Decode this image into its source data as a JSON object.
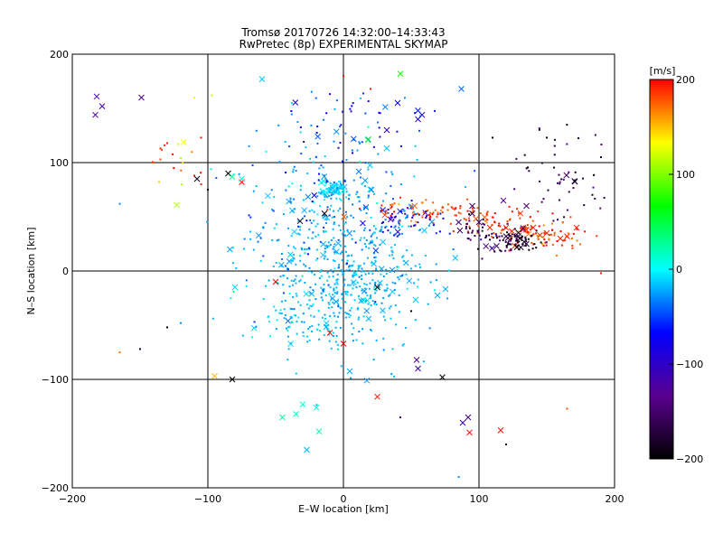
{
  "chart_data": {
    "type": "scatter",
    "title": "Tromsø 20170726 14:32:00–14:33:43",
    "subtitle": "RwPretec (8p) EXPERIMENTAL SKYMAP",
    "xlabel": "E–W location [km]",
    "ylabel": "N–S location [km]",
    "xlim": [
      -200,
      200
    ],
    "ylim": [
      -200,
      200
    ],
    "xticks": [
      -200,
      -100,
      0,
      100,
      200
    ],
    "yticks": [
      -200,
      -100,
      0,
      100,
      200
    ],
    "grid": true,
    "colorbar": {
      "label": "[m/s]",
      "range": [
        -200,
        200
      ],
      "ticks": [
        200,
        100,
        0,
        -100,
        -200
      ],
      "colormap": [
        "#000000",
        "#5a0090",
        "#0000ff",
        "#00ffff",
        "#00ff00",
        "#ffff00",
        "#ff0000"
      ]
    },
    "marker_types": [
      "cross",
      "dot"
    ],
    "clusters": [
      {
        "center": [
          0,
          0
        ],
        "spread": [
          32,
          38
        ],
        "count": 520,
        "velocity": [
          -20,
          5
        ]
      },
      {
        "center": [
          -7,
          75
        ],
        "spread": [
          6,
          5
        ],
        "count": 90,
        "velocity": [
          -10,
          10
        ]
      },
      {
        "center": [
          -18,
          60
        ],
        "spread": [
          30,
          40
        ],
        "count": 180,
        "velocity": [
          -30,
          20
        ]
      },
      {
        "center": [
          10,
          135
        ],
        "spread": [
          25,
          20
        ],
        "count": 45,
        "velocity": [
          -60,
          40
        ]
      },
      {
        "center": [
          45,
          48
        ],
        "spread": [
          14,
          8
        ],
        "count": 60,
        "velocity": [
          -80,
          30
        ]
      },
      {
        "center": [
          65,
          55
        ],
        "spread": [
          25,
          6
        ],
        "count": 70,
        "velocity": [
          185,
          15
        ]
      },
      {
        "center": [
          110,
          47
        ],
        "spread": [
          18,
          7
        ],
        "count": 40,
        "velocity": [
          190,
          10
        ]
      },
      {
        "center": [
          145,
          33
        ],
        "spread": [
          20,
          6
        ],
        "count": 80,
        "velocity": [
          185,
          15
        ]
      },
      {
        "center": [
          125,
          28
        ],
        "spread": [
          10,
          6
        ],
        "count": 70,
        "velocity": [
          -175,
          20
        ]
      },
      {
        "center": [
          100,
          38
        ],
        "spread": [
          10,
          5
        ],
        "count": 30,
        "velocity": [
          -160,
          20
        ]
      },
      {
        "center": [
          165,
          90
        ],
        "spread": [
          18,
          20
        ],
        "count": 50,
        "velocity": [
          -165,
          15
        ]
      },
      {
        "center": [
          -120,
          95
        ],
        "spread": [
          12,
          12
        ],
        "count": 12,
        "velocity": [
          160,
          40
        ]
      },
      {
        "center": [
          -35,
          -40
        ],
        "spread": [
          18,
          15
        ],
        "count": 50,
        "velocity": [
          -10,
          15
        ]
      },
      {
        "center": [
          30,
          -20
        ],
        "spread": [
          20,
          15
        ],
        "count": 30,
        "velocity": [
          -20,
          20
        ]
      }
    ],
    "points": [
      {
        "x": -183,
        "y": 144,
        "v": -120,
        "m": "cross"
      },
      {
        "x": -182,
        "y": 161,
        "v": -120,
        "m": "cross"
      },
      {
        "x": -178,
        "y": 152,
        "v": -120,
        "m": "cross"
      },
      {
        "x": -149,
        "y": 160,
        "v": -130,
        "m": "cross"
      },
      {
        "x": -135,
        "y": 113,
        "v": 190,
        "m": "dot"
      },
      {
        "x": -132,
        "y": 116,
        "v": 190,
        "m": "dot"
      },
      {
        "x": -130,
        "y": 118,
        "v": 190,
        "m": "dot"
      },
      {
        "x": -105,
        "y": 123,
        "v": 195,
        "m": "dot"
      },
      {
        "x": -97,
        "y": 162,
        "v": 120,
        "m": "dot"
      },
      {
        "x": -110,
        "y": 88,
        "v": 190,
        "m": "dot"
      },
      {
        "x": -108,
        "y": 85,
        "v": -190,
        "m": "cross"
      },
      {
        "x": -85,
        "y": 90,
        "v": -200,
        "m": "cross"
      },
      {
        "x": -82,
        "y": 87,
        "v": 30,
        "m": "cross"
      },
      {
        "x": -75,
        "y": 82,
        "v": 195,
        "m": "cross"
      },
      {
        "x": -123,
        "y": 61,
        "v": 110,
        "m": "cross"
      },
      {
        "x": -165,
        "y": 62,
        "v": -30,
        "m": "dot"
      },
      {
        "x": -135,
        "y": 103,
        "v": 180,
        "m": "dot"
      },
      {
        "x": -120,
        "y": 104,
        "v": 110,
        "m": "dot"
      },
      {
        "x": -60,
        "y": 177,
        "v": -15,
        "m": "cross"
      },
      {
        "x": -38,
        "y": 155,
        "v": -10,
        "m": "dot"
      },
      {
        "x": 42,
        "y": 182,
        "v": 70,
        "m": "cross"
      },
      {
        "x": 87,
        "y": 168,
        "v": -40,
        "m": "cross"
      },
      {
        "x": 40,
        "y": 155,
        "v": -70,
        "m": "cross"
      },
      {
        "x": 55,
        "y": 148,
        "v": -60,
        "m": "cross"
      },
      {
        "x": 58,
        "y": 144,
        "v": -90,
        "m": "cross"
      },
      {
        "x": 55,
        "y": 140,
        "v": -90,
        "m": "cross"
      },
      {
        "x": 32,
        "y": 130,
        "v": -110,
        "m": "cross"
      },
      {
        "x": 18,
        "y": 121,
        "v": 60,
        "m": "cross"
      },
      {
        "x": -32,
        "y": 46,
        "v": -195,
        "m": "cross"
      },
      {
        "x": -14,
        "y": 53,
        "v": -195,
        "m": "cross"
      },
      {
        "x": 150,
        "y": 123,
        "v": -190,
        "m": "dot"
      },
      {
        "x": 135,
        "y": 25,
        "v": -180,
        "m": "cross"
      },
      {
        "x": -50,
        "y": -10,
        "v": 200,
        "m": "cross"
      },
      {
        "x": -80,
        "y": -15,
        "v": -10,
        "m": "cross"
      },
      {
        "x": -83,
        "y": -25,
        "v": 0,
        "m": "dot"
      },
      {
        "x": 25,
        "y": -15,
        "v": -200,
        "m": "cross"
      },
      {
        "x": -150,
        "y": -72,
        "v": -180,
        "m": "dot"
      },
      {
        "x": -165,
        "y": -75,
        "v": 170,
        "m": "dot"
      },
      {
        "x": -130,
        "y": -52,
        "v": -200,
        "m": "dot"
      },
      {
        "x": -120,
        "y": -48,
        "v": -30,
        "m": "dot"
      },
      {
        "x": -95,
        "y": -97,
        "v": 150,
        "m": "cross"
      },
      {
        "x": -82,
        "y": -100,
        "v": -200,
        "m": "cross"
      },
      {
        "x": 54,
        "y": -82,
        "v": -130,
        "m": "cross"
      },
      {
        "x": 55,
        "y": -90,
        "v": -110,
        "m": "cross"
      },
      {
        "x": 73,
        "y": -98,
        "v": -200,
        "m": "cross"
      },
      {
        "x": 25,
        "y": -116,
        "v": 195,
        "m": "cross"
      },
      {
        "x": -30,
        "y": -123,
        "v": 10,
        "m": "cross"
      },
      {
        "x": -20,
        "y": -126,
        "v": 10,
        "m": "cross"
      },
      {
        "x": -45,
        "y": -135,
        "v": 20,
        "m": "cross"
      },
      {
        "x": -35,
        "y": -132,
        "v": 15,
        "m": "cross"
      },
      {
        "x": -18,
        "y": -148,
        "v": 20,
        "m": "cross"
      },
      {
        "x": -27,
        "y": -165,
        "v": -20,
        "m": "cross"
      },
      {
        "x": 92,
        "y": -135,
        "v": -150,
        "m": "cross"
      },
      {
        "x": 88,
        "y": -140,
        "v": -110,
        "m": "cross"
      },
      {
        "x": 93,
        "y": -149,
        "v": 200,
        "m": "cross"
      },
      {
        "x": 116,
        "y": -147,
        "v": 195,
        "m": "cross"
      },
      {
        "x": 120,
        "y": -160,
        "v": -200,
        "m": "dot"
      },
      {
        "x": 42,
        "y": -135,
        "v": -150,
        "m": "dot"
      },
      {
        "x": 85,
        "y": -190,
        "v": -30,
        "m": "dot"
      },
      {
        "x": 165,
        "y": -127,
        "v": 180,
        "m": "dot"
      },
      {
        "x": 190,
        "y": -2,
        "v": 190,
        "m": "dot"
      },
      {
        "x": 0,
        "y": -67,
        "v": 200,
        "m": "cross"
      },
      {
        "x": -10,
        "y": -57,
        "v": 190,
        "m": "cross"
      },
      {
        "x": 50,
        "y": -37,
        "v": -200,
        "m": "dot"
      },
      {
        "x": -140,
        "y": 100,
        "v": 180,
        "m": "dot"
      },
      {
        "x": -105,
        "y": 80,
        "v": 190,
        "m": "dot"
      },
      {
        "x": -100,
        "y": 75,
        "v": -190,
        "m": "dot"
      },
      {
        "x": -110,
        "y": 160,
        "v": 130,
        "m": "dot"
      },
      {
        "x": -75,
        "y": 85,
        "v": 10,
        "m": "cross"
      },
      {
        "x": 0,
        "y": 180,
        "v": 195,
        "m": "dot"
      },
      {
        "x": 20,
        "y": 168,
        "v": 195,
        "m": "dot"
      },
      {
        "x": 110,
        "y": 123,
        "v": -200,
        "m": "dot"
      },
      {
        "x": 190,
        "y": 105,
        "v": -180,
        "m": "dot"
      },
      {
        "x": 130,
        "y": 30,
        "v": -190,
        "m": "cross"
      },
      {
        "x": 128,
        "y": 22,
        "v": -200,
        "m": "cross"
      },
      {
        "x": 120,
        "y": 32,
        "v": -170,
        "m": "cross"
      },
      {
        "x": 100,
        "y": 45,
        "v": -150,
        "m": "cross"
      },
      {
        "x": 95,
        "y": 60,
        "v": -150,
        "m": "cross"
      },
      {
        "x": 85,
        "y": 45,
        "v": -150,
        "m": "cross"
      },
      {
        "x": 95,
        "y": 53,
        "v": -160,
        "m": "cross"
      },
      {
        "x": 113,
        "y": 23,
        "v": -160,
        "m": "cross"
      },
      {
        "x": 135,
        "y": 60,
        "v": -150,
        "m": "cross"
      },
      {
        "x": 118,
        "y": 65,
        "v": -130,
        "m": "cross"
      },
      {
        "x": 145,
        "y": 33,
        "v": 190,
        "m": "cross"
      },
      {
        "x": 150,
        "y": 35,
        "v": 190,
        "m": "cross"
      },
      {
        "x": 160,
        "y": 30,
        "v": 190,
        "m": "cross"
      },
      {
        "x": 165,
        "y": 32,
        "v": 190,
        "m": "cross"
      },
      {
        "x": 172,
        "y": 40,
        "v": 190,
        "m": "cross"
      },
      {
        "x": 140,
        "y": 40,
        "v": 190,
        "m": "cross"
      },
      {
        "x": 135,
        "y": 38,
        "v": 190,
        "m": "cross"
      },
      {
        "x": 108,
        "y": 40,
        "v": 190,
        "m": "cross"
      },
      {
        "x": 120,
        "y": 40,
        "v": 190,
        "m": "cross"
      }
    ]
  }
}
